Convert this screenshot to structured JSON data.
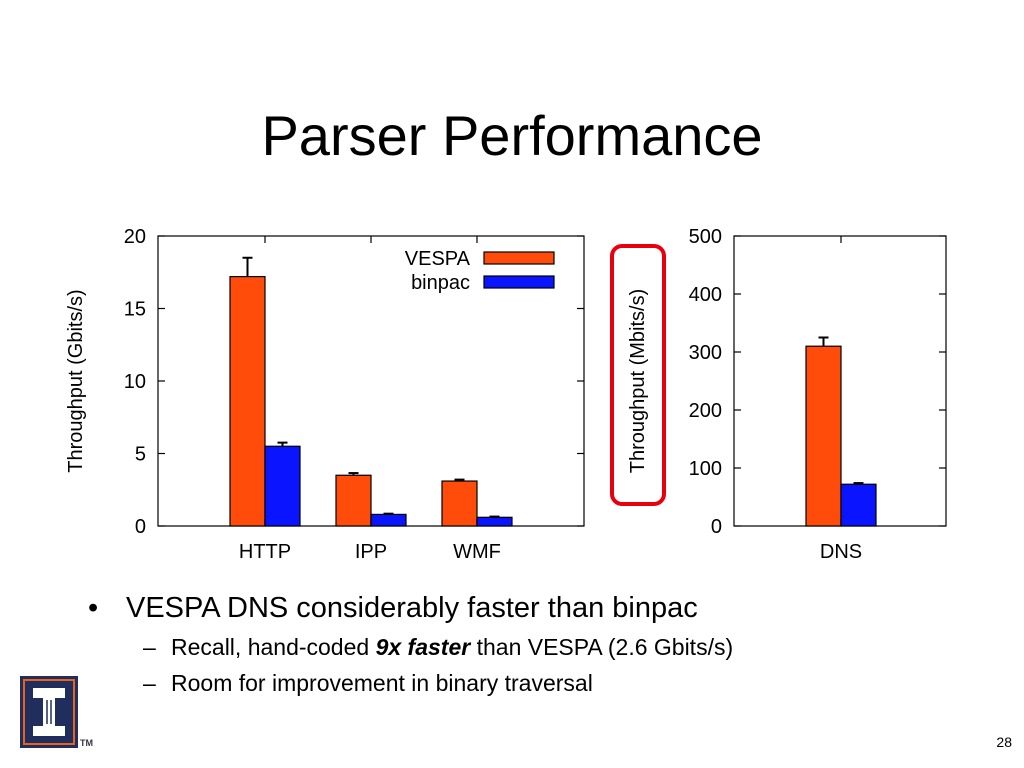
{
  "slide": {
    "title": "Parser Performance",
    "bullet_main": "VESPA DNS considerably faster than binpac",
    "sub1_before": "Recall, hand-coded ",
    "sub1_emph": "9x faster",
    "sub1_after": " than VESPA (2.6 Gbits/s)",
    "sub2": "Room for improvement in binary traversal",
    "bullet_glyph": "•",
    "dash_glyph": "–",
    "page_number": "28",
    "logo": "university-of-illinois-block-i-logo",
    "trademark": "TM"
  },
  "colors": {
    "vespa": "#ff4c0a",
    "binpac": "#0a14ff",
    "highlight": "#e8000e",
    "logo_blue": "#1f2e5c",
    "logo_orange": "#e8621a"
  },
  "chart_data": [
    {
      "type": "bar",
      "categories": [
        "HTTP",
        "IPP",
        "WMF"
      ],
      "series": [
        {
          "name": "VESPA",
          "values": [
            17.2,
            3.5,
            3.1
          ],
          "errors": [
            1.3,
            0.15,
            0.1
          ]
        },
        {
          "name": "binpac",
          "values": [
            5.5,
            0.8,
            0.6
          ],
          "errors": [
            0.25,
            0.05,
            0.05
          ]
        }
      ],
      "ylabel": "Throughput (Gbits/s)",
      "ylim": [
        0,
        20
      ],
      "yticks": [
        0,
        5,
        10,
        15,
        20
      ],
      "legend": "top-right",
      "grid": false
    },
    {
      "type": "bar",
      "categories": [
        "DNS"
      ],
      "series": [
        {
          "name": "VESPA",
          "values": [
            310
          ],
          "errors": [
            15
          ]
        },
        {
          "name": "binpac",
          "values": [
            72
          ],
          "errors": [
            2
          ]
        }
      ],
      "ylabel": "Throughput (Mbits/s)",
      "ylim": [
        0,
        500
      ],
      "yticks": [
        0,
        100,
        200,
        300,
        400,
        500
      ],
      "ylabel_highlighted": true,
      "grid": false
    }
  ]
}
